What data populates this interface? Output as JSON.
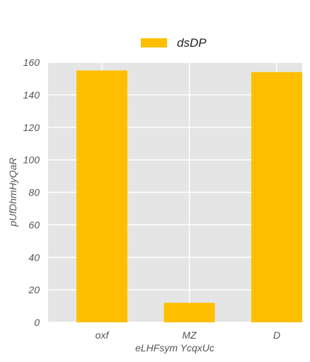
{
  "chart_data": {
    "type": "bar",
    "categories": [
      "oxf",
      "MZ",
      "D"
    ],
    "series": [
      {
        "name": "dsDP",
        "values": [
          155,
          12,
          154
        ],
        "color": "#FFBF00"
      }
    ],
    "xlabel": "eLHFsym YcqxUc",
    "ylabel": "pUfDhmHyQaR",
    "ylim": [
      0,
      160
    ],
    "yticks": [
      "0",
      "20",
      "40",
      "60",
      "80",
      "100",
      "120",
      "140",
      "160"
    ],
    "grid": true,
    "background": "#E5E5E5",
    "legend_position": "top-center"
  }
}
